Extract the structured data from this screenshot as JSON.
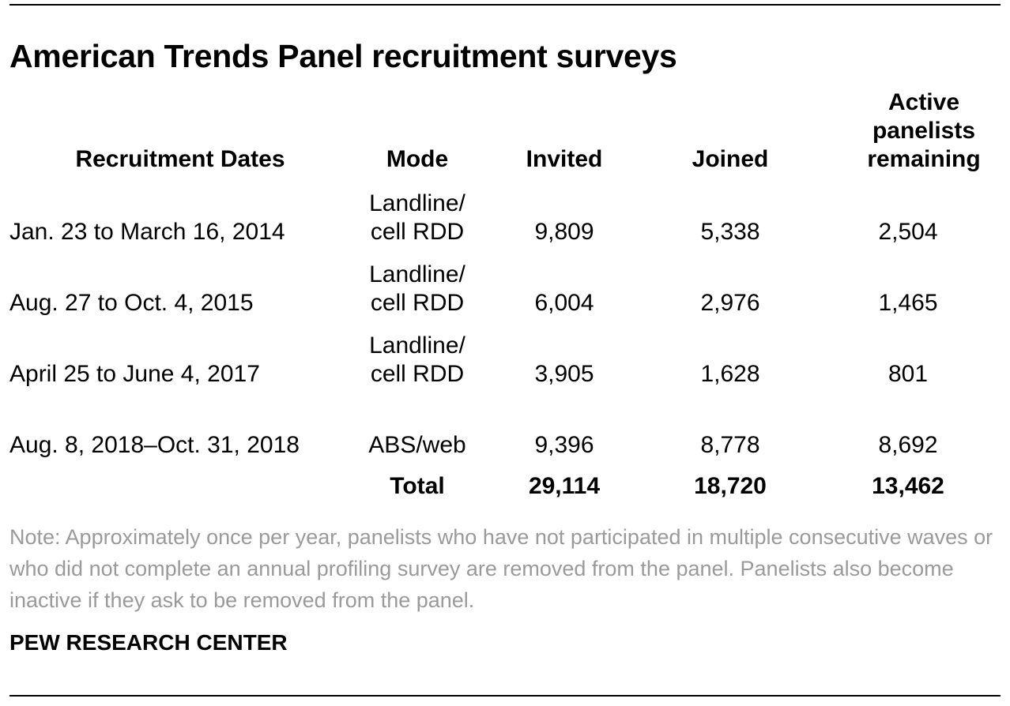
{
  "chart_data": {
    "type": "table",
    "title": "American Trends Panel recruitment surveys",
    "columns": [
      "Recruitment Dates",
      "Mode",
      "Invited",
      "Joined",
      "Active panelists remaining"
    ],
    "rows": [
      {
        "dates": "Jan. 23 to March 16, 2014",
        "mode": "Landline/ cell RDD",
        "invited": "9,809",
        "joined": "5,338",
        "active": "2,504"
      },
      {
        "dates": "Aug. 27 to Oct. 4, 2015",
        "mode": "Landline/ cell RDD",
        "invited": "6,004",
        "joined": "2,976",
        "active": "1,465"
      },
      {
        "dates": "April 25 to June 4, 2017",
        "mode": "Landline/ cell RDD",
        "invited": "3,905",
        "joined": "1,628",
        "active": "801"
      },
      {
        "dates": "Aug. 8, 2018–Oct. 31, 2018",
        "mode": "ABS/web",
        "invited": "9,396",
        "joined": "8,778",
        "active": "8,692"
      }
    ],
    "total": {
      "label": "Total",
      "invited": "29,114",
      "joined": "18,720",
      "active": "13,462"
    }
  },
  "note": "Note: Approximately once per year, panelists who have not participated in multiple consecutive waves or who did not complete an annual profiling survey are removed from the panel. Panelists also become inactive if they ask to be removed from the panel.",
  "source": "PEW RESEARCH CENTER"
}
